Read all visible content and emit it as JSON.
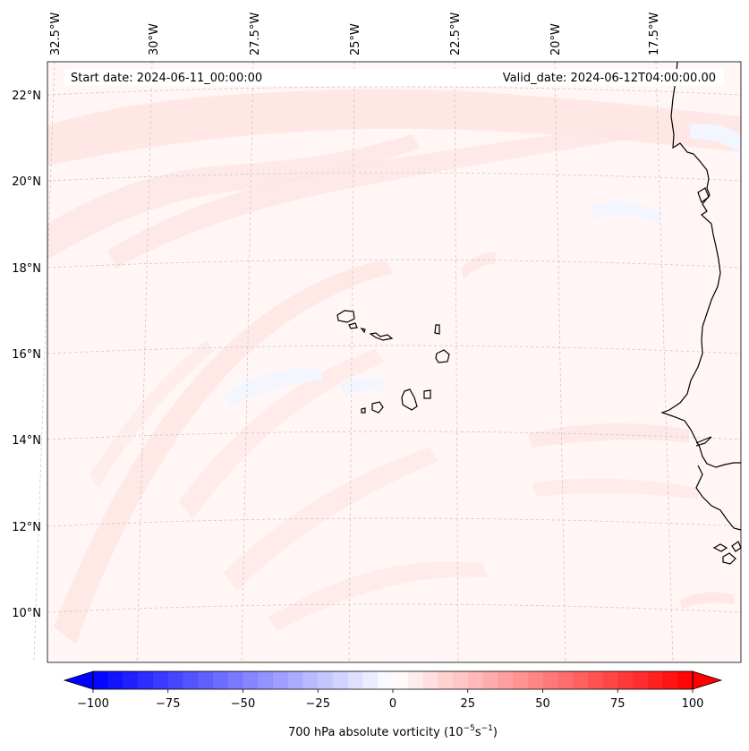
{
  "map": {
    "start_date": "Start date: 2024-06-11_00:00:00",
    "valid_date": "Valid_date: 2024-06-12T04:00:00.00",
    "lon_labels": [
      "32.5°W",
      "30°W",
      "27.5°W",
      "25°W",
      "22.5°W",
      "20°W",
      "17.5°W"
    ],
    "lat_labels": [
      "22°N",
      "20°N",
      "18°N",
      "16°N",
      "14°N",
      "12°N",
      "10°N"
    ],
    "field_name": "700 hPa absolute vorticity",
    "field_units_base": "10",
    "field_units_exp": "−5",
    "field_units_unit": "s",
    "field_units_unit_exp": "−1"
  },
  "colorbar": {
    "min": -100,
    "max": 100,
    "step": 5,
    "ticks": [
      "−100",
      "−75",
      "−50",
      "−25",
      "0",
      "25",
      "50",
      "75",
      "100"
    ],
    "low_color": "#0000ff",
    "mid_color": "#ffffff",
    "high_color": "#ff0000"
  },
  "colors": {
    "background_field": "#fff6f5",
    "light_positive": "#ffe4e2",
    "light_negative": "#f3f5ff",
    "coastline": "#000000",
    "gridline": "#c8c8c8"
  }
}
